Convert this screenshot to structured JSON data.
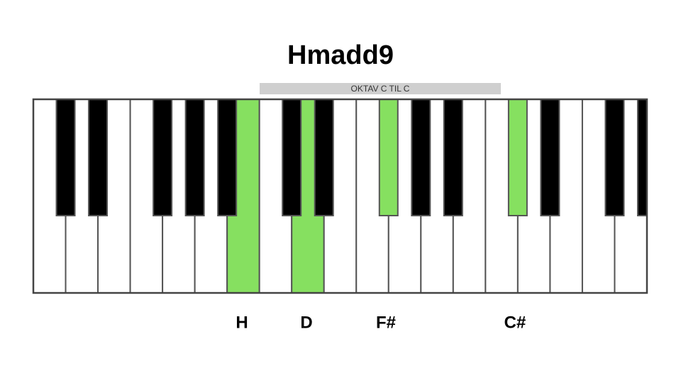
{
  "header": {
    "title": "Hmadd9"
  },
  "octave_label": "OKTAV C TIL C",
  "notes": [
    {
      "label": "H"
    },
    {
      "label": "D"
    },
    {
      "label": "F#"
    },
    {
      "label": "C#"
    }
  ]
}
